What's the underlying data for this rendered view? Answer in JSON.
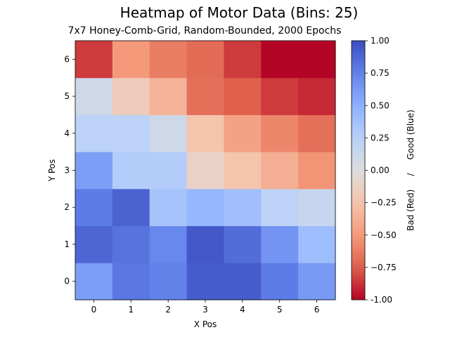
{
  "chart_data": {
    "type": "heatmap",
    "title": "Heatmap of Motor Data (Bins: 25)",
    "subtitle": "7x7 Honey-Comb-Grid, Random-Bounded, 2000 Epochs",
    "xlabel": "X Pos",
    "ylabel": "Y Pos",
    "x_categories": [
      "0",
      "1",
      "2",
      "3",
      "4",
      "5",
      "6"
    ],
    "y_categories": [
      "0",
      "1",
      "2",
      "3",
      "4",
      "5",
      "6"
    ],
    "colormap": "coolwarm",
    "vmin": -1.0,
    "vmax": 1.0,
    "colorbar": {
      "label": "Bad (Red)     /     Good (Blue)",
      "ticks": [
        "-1.00",
        "−0.75",
        "−0.50",
        "−0.25",
        "0.00",
        "0.25",
        "0.50",
        "0.75",
        "1.00"
      ],
      "tick_values": [
        -1.0,
        -0.75,
        -0.5,
        -0.25,
        0.0,
        0.25,
        0.5,
        0.75,
        1.0
      ]
    },
    "values_by_row_y": [
      [
        0.6,
        0.8,
        0.75,
        0.92,
        0.92,
        0.78,
        0.62
      ],
      [
        0.88,
        0.82,
        0.72,
        0.95,
        0.85,
        0.65,
        0.4
      ],
      [
        0.78,
        0.9,
        0.35,
        0.45,
        0.38,
        0.22,
        0.15
      ],
      [
        0.6,
        0.28,
        0.28,
        -0.12,
        -0.25,
        -0.38,
        -0.52
      ],
      [
        0.22,
        0.22,
        0.1,
        -0.25,
        -0.45,
        -0.58,
        -0.68
      ],
      [
        0.1,
        -0.18,
        -0.35,
        -0.68,
        -0.75,
        -0.85,
        -0.9
      ],
      [
        -0.85,
        -0.5,
        -0.62,
        -0.7,
        -0.85,
        -1.0,
        -1.0
      ]
    ]
  }
}
